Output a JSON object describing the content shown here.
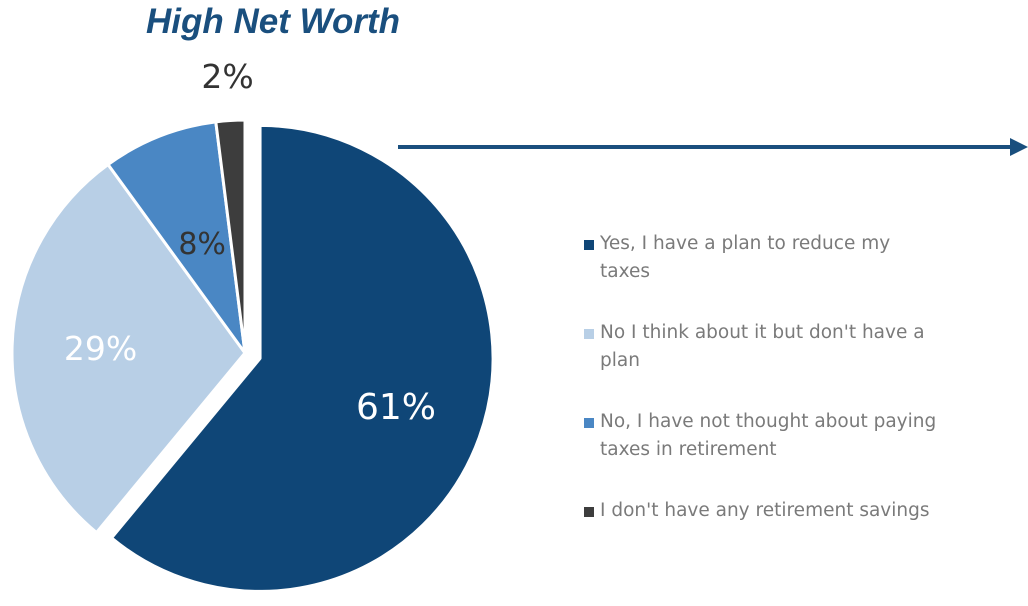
{
  "chart_data": {
    "type": "pie",
    "title": "High Net Worth",
    "slices": [
      {
        "label": "Yes, I have a plan to reduce my taxes",
        "value": 61,
        "display": "61%",
        "color": "#0f4677",
        "label_color": "#ffffff",
        "exploded": true
      },
      {
        "label": "No I think about it but don't have a plan",
        "value": 29,
        "display": "29%",
        "color": "#b8cfe6",
        "label_color": "#ffffff",
        "exploded": false
      },
      {
        "label": "No, I have not thought about paying taxes in retirement",
        "value": 8,
        "display": "8%",
        "color": "#4a87c4",
        "label_color": "#333333",
        "exploded": false
      },
      {
        "label": "I don't have any retirement savings",
        "value": 2,
        "display": "2%",
        "color": "#3d3d3d",
        "label_color": "#333333",
        "exploded": false
      }
    ],
    "legend_position": "right",
    "arrow_color": "#1a4f7e"
  }
}
